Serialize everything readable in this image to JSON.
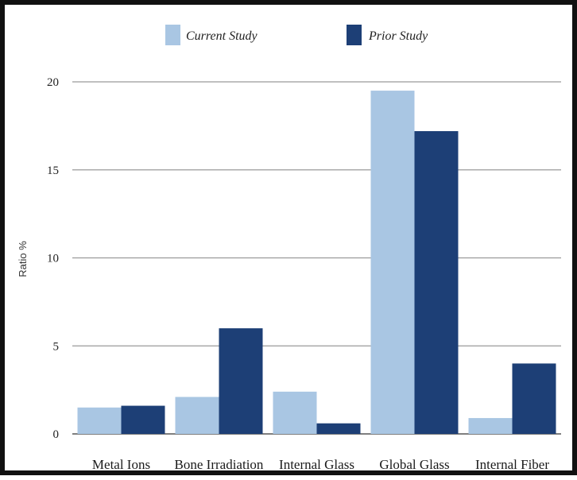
{
  "chart_data": {
    "type": "bar",
    "categories": [
      "Metal Ions",
      "Bone Irradiation",
      "Internal Glass",
      "Global Glass",
      "Internal Fiber"
    ],
    "series": [
      {
        "name": "Current Study",
        "values": [
          1.5,
          2.1,
          2.4,
          19.5,
          0.9
        ],
        "color": "#a9c6e3"
      },
      {
        "name": "Prior Study",
        "values": [
          1.6,
          6.0,
          0.6,
          17.2,
          4.0
        ],
        "color": "#1d3f76"
      }
    ],
    "ylabel": "Ratio %",
    "ylim": [
      0,
      20
    ],
    "yticks": [
      0,
      5,
      10,
      15,
      20
    ],
    "ytick_labels": [
      "0",
      "5",
      "10",
      "15",
      "20"
    ],
    "grid": true,
    "legend_position": "top"
  }
}
